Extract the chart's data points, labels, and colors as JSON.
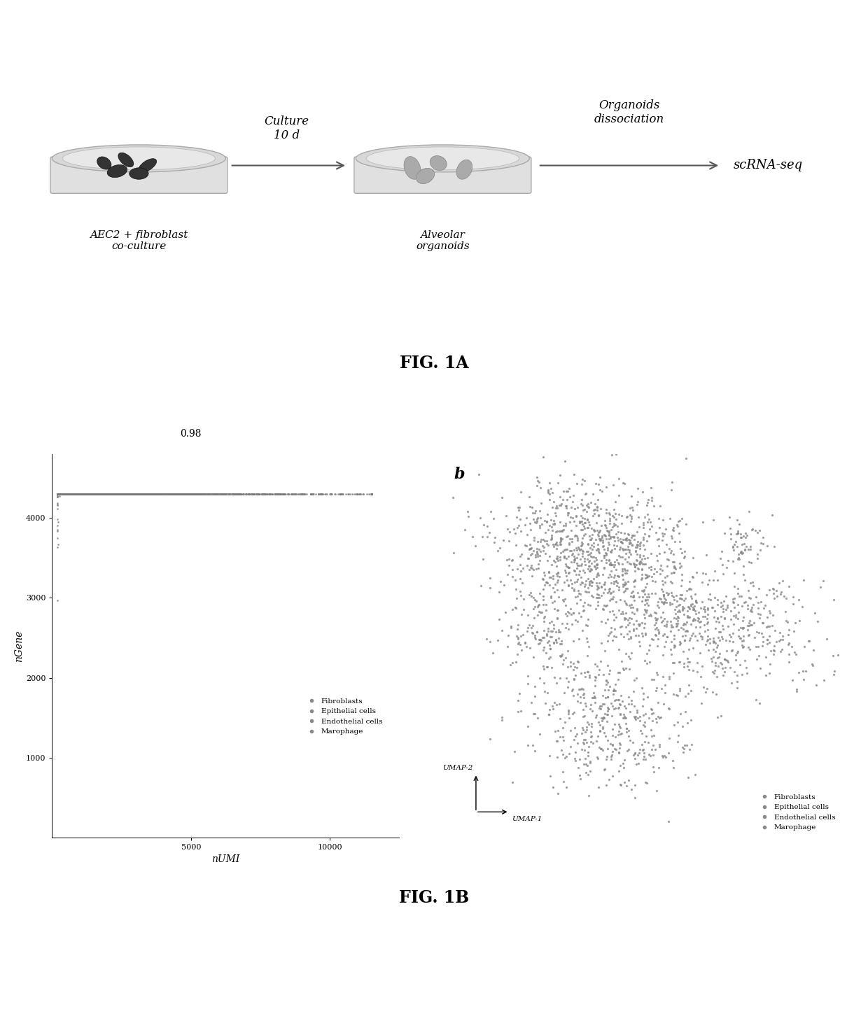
{
  "fig1a": {
    "title": "FIG. 1A",
    "label1": "AEC2 + fibroblast\nco-culture",
    "label2": "Alveolar\norganoids",
    "arrow1_label": "Culture\n10 d",
    "arrow2_label": "Organoids\ndissociation",
    "arrow2_end": "scRNA-seq"
  },
  "fig1b": {
    "title": "FIG. 1B",
    "scatter_title": "0.98",
    "scatter_xlabel": "nUMI",
    "scatter_ylabel": "nGene",
    "scatter_yticks": [
      1000,
      2000,
      3000,
      4000
    ],
    "scatter_xticks": [
      5000,
      10000
    ],
    "umap_label": "b",
    "umap_xlabel": "UMAP-1",
    "umap_ylabel": "UMAP-2",
    "legend_entries": [
      "Fibroblasts",
      "Epithelial cells",
      "Endothelial cells",
      "Marophage"
    ],
    "dot_color": "#888888",
    "background_color": "#ffffff"
  }
}
